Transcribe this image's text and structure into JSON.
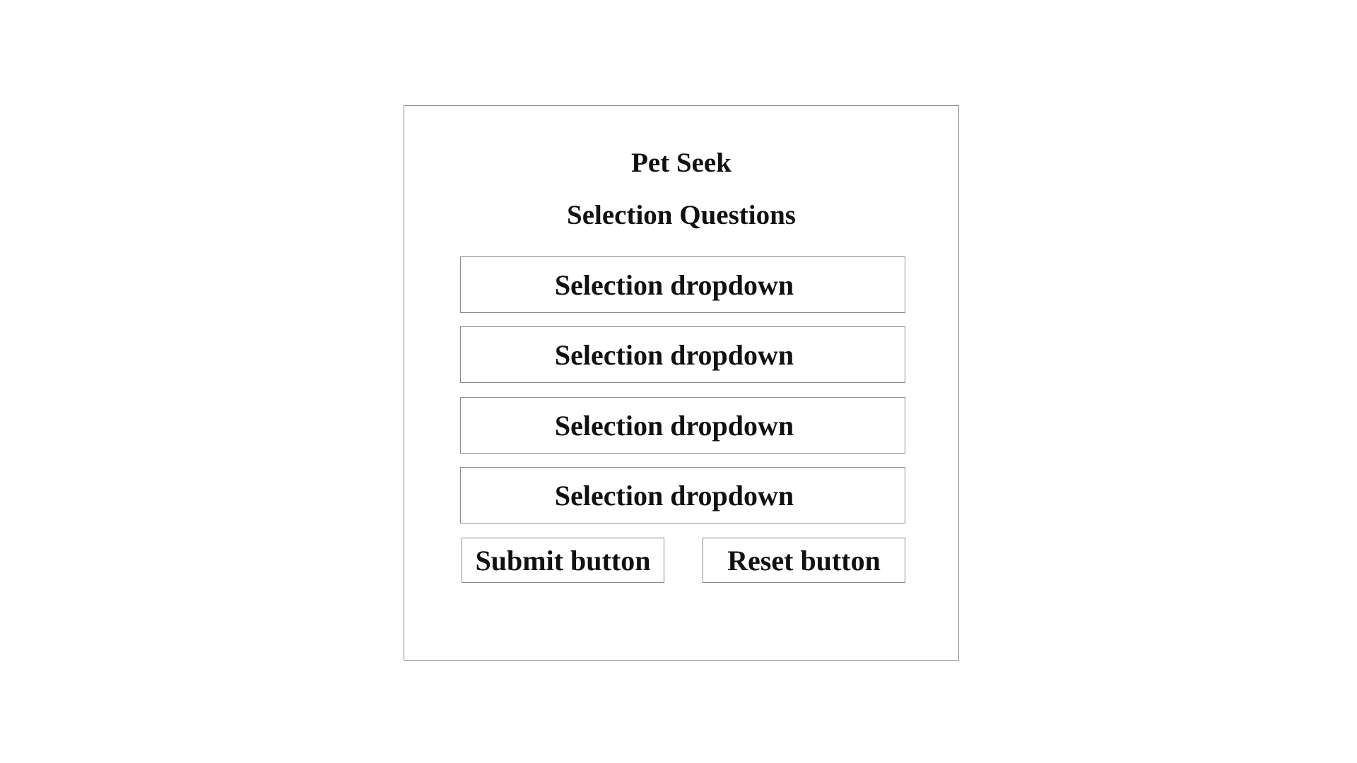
{
  "app": {
    "title": "Pet Seek",
    "subtitle": "Selection Questions"
  },
  "form": {
    "dropdowns": [
      {
        "label": "Selection dropdown"
      },
      {
        "label": "Selection dropdown"
      },
      {
        "label": "Selection dropdown"
      },
      {
        "label": "Selection dropdown"
      }
    ],
    "submit_label": "Submit button",
    "reset_label": "Reset button"
  },
  "colors": {
    "border": "#8a8a8a",
    "text": "#111111",
    "background": "#ffffff"
  }
}
